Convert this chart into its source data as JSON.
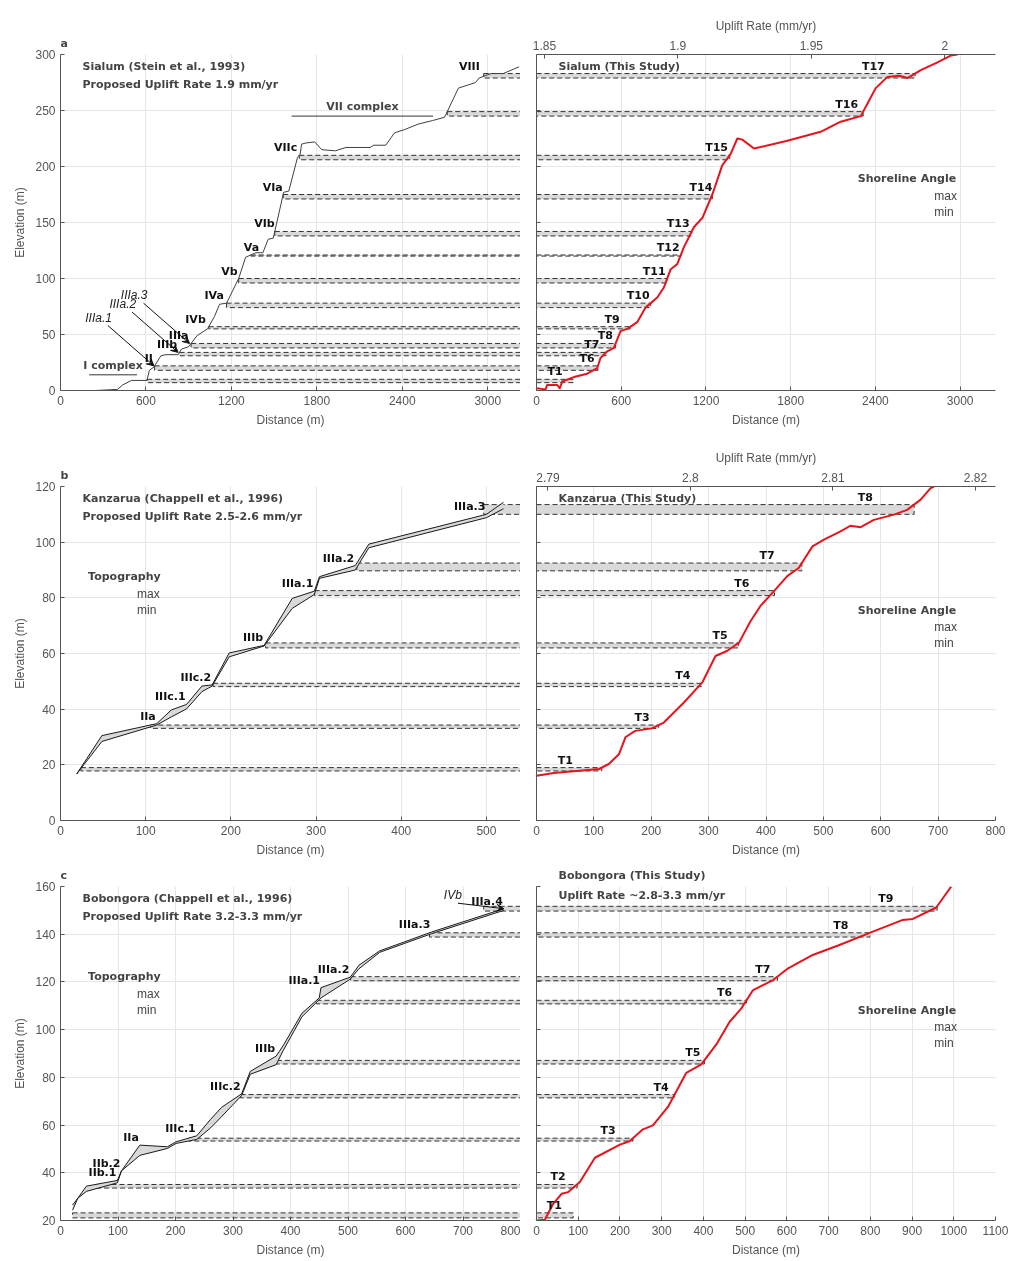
{
  "chart_data": [
    {
      "type": "line",
      "title": "Sialum (Stein et al., 1993)",
      "subtitle": "Proposed Uplift Rate 1.9 mm/yr",
      "xlabel": "Distance (m)",
      "ylabel": "Elevation (m)",
      "grid": true,
      "xlim": [
        0,
        3230
      ],
      "xticks": [
        0,
        600,
        1200,
        1800,
        2400,
        3000
      ],
      "ylim": [
        0,
        300
      ],
      "yticks": [
        0,
        50,
        100,
        150,
        200,
        250,
        300
      ],
      "x": [
        243,
        401,
        437,
        498,
        607,
        624,
        656,
        705,
        741,
        826,
        850,
        899,
        959,
        1032,
        1081,
        1117,
        1166,
        1251,
        1300,
        1372,
        1421,
        1458,
        1494,
        1567,
        1603,
        1664,
        1683,
        1693,
        1724,
        1785,
        1834,
        1931,
        2004,
        2174,
        2199,
        2284,
        2345,
        2417,
        2515,
        2612,
        2697,
        2794,
        2915,
        2939,
        3024,
        3109,
        3220
      ],
      "series": [
        {
          "color": "#404040",
          "values": [
            0,
            1,
            5,
            9,
            9,
            18,
            21,
            31,
            32,
            32,
            37,
            39,
            49,
            55,
            66,
            77,
            78,
            100,
            119,
            123,
            123,
            135,
            136,
            177,
            178,
            208,
            211,
            220,
            221,
            222,
            215,
            214,
            217,
            217,
            219,
            219,
            230,
            233,
            238,
            241,
            244,
            270,
            275,
            279,
            283,
            283,
            289
          ]
        },
        {
          "name": "VII complex",
          "color": "#333333",
          "x": [
            1623,
            2616
          ],
          "values": [
            245,
            245
          ]
        },
        {
          "name": "I complex",
          "color": "#333333",
          "x": [
            201,
            537
          ],
          "values": [
            14,
            14
          ]
        }
      ],
      "bands": [
        {
          "axis": "y",
          "from": 7,
          "to": 10,
          "color": "#d9d9d9"
        },
        {
          "axis": "y",
          "from": 18,
          "to": 22,
          "color": "#d9d9d9"
        },
        {
          "axis": "y",
          "from": 31,
          "to": 34,
          "color": "#d9d9d9"
        },
        {
          "axis": "y",
          "from": 38,
          "to": 42,
          "color": "#d9d9d9"
        },
        {
          "axis": "y",
          "from": 55,
          "to": 57,
          "color": "#d9d9d9"
        },
        {
          "axis": "y",
          "from": 74,
          "to": 78,
          "color": "#d9d9d9"
        },
        {
          "axis": "y",
          "from": 96,
          "to": 100,
          "color": "#d9d9d9"
        },
        {
          "axis": "y",
          "from": 120,
          "to": 121,
          "color": "#d9d9d9"
        },
        {
          "axis": "y",
          "from": 138,
          "to": 142,
          "color": "#d9d9d9"
        },
        {
          "axis": "y",
          "from": 171,
          "to": 175,
          "color": "#d9d9d9"
        },
        {
          "axis": "y",
          "from": 206,
          "to": 210,
          "color": "#d9d9d9"
        },
        {
          "axis": "y",
          "from": 245,
          "to": 249,
          "color": "#d9d9d9"
        },
        {
          "axis": "y",
          "from": 279,
          "to": 283,
          "color": "#d9d9d9"
        }
      ],
      "annotations": [
        "a",
        {
          "text": "VIII",
          "x": 2951,
          "y": 283
        },
        {
          "text": "VIIc",
          "x": 1669,
          "y": 210
        },
        {
          "text": "VIa",
          "x": 1567,
          "y": 175
        },
        {
          "text": "VIb",
          "x": 1511,
          "y": 142
        },
        {
          "text": "Va",
          "x": 1402,
          "y": 121
        },
        {
          "text": "Vb",
          "x": 1251,
          "y": 100
        },
        {
          "text": "IVa",
          "x": 1154,
          "y": 78
        },
        {
          "text": "IVb",
          "x": 1027,
          "y": 57
        },
        {
          "text": "IIIa",
          "x": 906,
          "y": 42
        },
        {
          "text": "IIIb",
          "x": 826,
          "y": 34
        },
        {
          "text": "II",
          "x": 656,
          "y": 22
        },
        {
          "text": "IIIa.1",
          "x": 656,
          "y": 22
        },
        {
          "text": "IIIa.2",
          "x": 826,
          "y": 34
        },
        {
          "text": "IIIa.3",
          "x": 906,
          "y": 42
        }
      ]
    },
    {
      "type": "line",
      "title": "Sialum (This Study)",
      "xlabel": "Distance (m)",
      "grid": true,
      "tick_labels": "x",
      "xlim": [
        0,
        3250
      ],
      "xticks": [
        0,
        600,
        1200,
        1800,
        2400,
        3000
      ],
      "ylim": [
        0,
        300
      ],
      "yticks": [
        0,
        50,
        100,
        150,
        200,
        250,
        300
      ],
      "x2label": "Uplift Rate (mm/yr)",
      "x2lim": [
        1.847,
        2.019
      ],
      "x2ticks": [
        1.85,
        1.9,
        1.95,
        2
      ],
      "x": [
        0,
        64,
        76,
        146,
        165,
        182,
        265,
        359,
        430,
        453,
        501,
        548,
        595,
        643,
        713,
        772,
        855,
        902,
        949,
        997,
        1044,
        1115,
        1174,
        1245,
        1315,
        1374,
        1422,
        1457,
        1540,
        1776,
        2012,
        2154,
        2296,
        2355,
        2402,
        2485,
        2568,
        2627,
        2721,
        2839,
        2933,
        2981
      ],
      "series": [
        {
          "color": "#e8141b",
          "values": [
            2,
            1,
            5,
            5,
            2,
            8,
            12,
            15,
            20,
            29,
            35,
            38,
            53,
            55,
            61,
            74,
            83,
            92,
            108,
            113,
            128,
            146,
            154,
            175,
            201,
            211,
            225,
            224,
            216,
            223,
            231,
            240,
            245,
            259,
            270,
            280,
            281,
            279,
            286,
            293,
            299,
            300
          ]
        }
      ],
      "bands": [
        {
          "axis": "y",
          "from": 7,
          "to": 10,
          "color": "#d9d9d9"
        },
        {
          "axis": "y",
          "from": 18,
          "to": 22,
          "color": "#d9d9d9"
        },
        {
          "axis": "y",
          "from": 31,
          "to": 34,
          "color": "#d9d9d9"
        },
        {
          "axis": "y",
          "from": 38,
          "to": 42,
          "color": "#d9d9d9"
        },
        {
          "axis": "y",
          "from": 55,
          "to": 57,
          "color": "#d9d9d9"
        },
        {
          "axis": "y",
          "from": 74,
          "to": 78,
          "color": "#d9d9d9"
        },
        {
          "axis": "y",
          "from": 96,
          "to": 100,
          "color": "#d9d9d9"
        },
        {
          "axis": "y",
          "from": 120,
          "to": 121,
          "color": "#d9d9d9"
        },
        {
          "axis": "y",
          "from": 138,
          "to": 142,
          "color": "#d9d9d9"
        },
        {
          "axis": "y",
          "from": 171,
          "to": 175,
          "color": "#d9d9d9"
        },
        {
          "axis": "y",
          "from": 206,
          "to": 210,
          "color": "#d9d9d9"
        },
        {
          "axis": "y",
          "from": 245,
          "to": 249,
          "color": "#d9d9d9"
        },
        {
          "axis": "y",
          "from": 279,
          "to": 283,
          "color": "#d9d9d9"
        }
      ],
      "annotations": [
        "Shoreline Angle",
        "max",
        "min",
        {
          "text": "T1",
          "x": 64,
          "y": 10
        },
        {
          "text": "T6",
          "x": 418,
          "y": 22
        },
        {
          "text": "T7",
          "x": 453,
          "y": 34
        },
        {
          "text": "T8",
          "x": 548,
          "y": 42
        },
        {
          "text": "T9",
          "x": 595,
          "y": 57
        },
        {
          "text": "T10",
          "x": 808,
          "y": 78
        },
        {
          "text": "T11",
          "x": 921,
          "y": 100
        },
        {
          "text": "T12",
          "x": 1020,
          "y": 121
        },
        {
          "text": "T13",
          "x": 1091,
          "y": 142
        },
        {
          "text": "T14",
          "x": 1252,
          "y": 175
        },
        {
          "text": "T15",
          "x": 1363,
          "y": 210
        },
        {
          "text": "T16",
          "x": 2284,
          "y": 249
        },
        {
          "text": "T17",
          "x": 2473,
          "y": 283
        }
      ]
    },
    {
      "type": "line",
      "title": "Kanzarua (Chappell et al., 1996)",
      "subtitle": "Proposed Uplift Rate 2.5-2.6 mm/yr",
      "xlabel": "Distance (m)",
      "ylabel": "Elevation (m)",
      "grid": true,
      "xlim": [
        0,
        540
      ],
      "xticks": [
        0,
        100,
        200,
        300,
        400,
        500
      ],
      "ylim": [
        0,
        120
      ],
      "yticks": [
        0,
        20,
        40,
        60,
        80,
        100,
        120
      ],
      "x": [
        19,
        48.6,
        113,
        130,
        148,
        166,
        178,
        198,
        239,
        272,
        298,
        304,
        346,
        362,
        500,
        520
      ],
      "series": [
        {
          "color": "#1a1a1a",
          "values": [
            16.7,
            30.5,
            34.8,
            39.7,
            41.7,
            48.3,
            48.7,
            60.2,
            62.9,
            79.8,
            82.4,
            87.6,
            91.6,
            99.3,
            110,
            114.3
          ],
          "upper": [
            16.7,
            30.5,
            34.8,
            39.7,
            41.7,
            48.3,
            48.7,
            60.2,
            62.9,
            79.8,
            82.4,
            87.6,
            91.6,
            99.3,
            110,
            114.3
          ],
          "lower": [
            16.7,
            28.4,
            34.3,
            37.2,
            40.1,
            46.3,
            48.3,
            58.8,
            62.7,
            76.2,
            81.2,
            87,
            90,
            98,
            108.8,
            112
          ]
        },
        {
          "color": "#1a1a1a",
          "values": [
            16.7,
            28.4,
            34.3,
            37.2,
            40.1,
            46.3,
            48.3,
            58.8,
            62.7,
            76.2,
            81.2,
            87,
            90,
            98,
            108.8,
            112
          ]
        }
      ],
      "bands": [
        {
          "axis": "y",
          "from": 17.8,
          "to": 19,
          "color": "#d9d9d9"
        },
        {
          "axis": "y",
          "from": 33.1,
          "to": 34.3,
          "color": "#d9d9d9"
        },
        {
          "axis": "y",
          "from": 48.1,
          "to": 49.3,
          "color": "#d9d9d9"
        },
        {
          "axis": "y",
          "from": 62,
          "to": 63.8,
          "color": "#d9d9d9"
        },
        {
          "axis": "y",
          "from": 80.8,
          "to": 82.6,
          "color": "#d9d9d9"
        },
        {
          "axis": "y",
          "from": 89.7,
          "to": 92.5,
          "color": "#d9d9d9"
        },
        {
          "axis": "y",
          "from": 110,
          "to": 113.5,
          "color": "#d9d9d9"
        }
      ],
      "annotations": [
        "b",
        "Topography",
        "max",
        "min",
        {
          "text": "IIa",
          "x": 113,
          "y": 34.8
        },
        {
          "text": "IIIc.1",
          "x": 148,
          "y": 41.7
        },
        {
          "text": "IIIc.2",
          "x": 178,
          "y": 48.7
        },
        {
          "text": "IIIb",
          "x": 239,
          "y": 62.9
        },
        {
          "text": "IIIa.1",
          "x": 298,
          "y": 82.4
        },
        {
          "text": "IIIa.2",
          "x": 346,
          "y": 91.6
        },
        {
          "text": "IIIa.3",
          "x": 500,
          "y": 110
        }
      ]
    },
    {
      "type": "line",
      "title": "Kanzarua (This Study)",
      "xlabel": "Distance (m)",
      "grid": true,
      "tick_labels": "x",
      "xlim": [
        0,
        800
      ],
      "xticks": [
        0,
        100,
        200,
        300,
        400,
        500,
        600,
        700,
        800
      ],
      "ylim": [
        0,
        120
      ],
      "yticks": [
        0,
        20,
        40,
        60,
        80,
        100,
        120
      ],
      "x2label": "Uplift Rate (mm/yr)",
      "x2lim": [
        2.7892,
        2.8214
      ],
      "x2ticks": [
        2.79,
        2.8,
        2.81,
        2.82
      ],
      "x": [
        0,
        30,
        65,
        109,
        126,
        144,
        155,
        172,
        201,
        222,
        257,
        289,
        312,
        332,
        353,
        373,
        390,
        414,
        437,
        457,
        481,
        501,
        530,
        547,
        565,
        588,
        623,
        646,
        669,
        687,
        693
      ],
      "series": [
        {
          "color": "#e8141b",
          "values": [
            16.1,
            17.1,
            17.7,
            18.5,
            20.3,
            23.9,
            29.9,
            32.2,
            33.1,
            35.2,
            42.4,
            49.6,
            59.1,
            60.9,
            63.9,
            71.6,
            77,
            82.4,
            87.8,
            90.7,
            98.5,
            100.9,
            103.9,
            105.9,
            105.4,
            108,
            109.9,
            111.6,
            115.2,
            119.4,
            120
          ]
        }
      ],
      "bands": [
        {
          "axis": "y",
          "from": 17.8,
          "to": 19,
          "color": "#d9d9d9"
        },
        {
          "axis": "y",
          "from": 33.1,
          "to": 34.3,
          "color": "#d9d9d9"
        },
        {
          "axis": "y",
          "from": 48.1,
          "to": 49.3,
          "color": "#d9d9d9"
        },
        {
          "axis": "y",
          "from": 62,
          "to": 63.8,
          "color": "#d9d9d9"
        },
        {
          "axis": "y",
          "from": 80.8,
          "to": 82.6,
          "color": "#d9d9d9"
        },
        {
          "axis": "y",
          "from": 89.7,
          "to": 92.5,
          "color": "#d9d9d9"
        },
        {
          "axis": "y",
          "from": 110,
          "to": 113.5,
          "color": "#d9d9d9"
        }
      ],
      "annotations": [
        "Shoreline Angle",
        "max",
        "min",
        {
          "text": "T1",
          "x": 65,
          "y": 19
        },
        {
          "text": "T3",
          "x": 199,
          "y": 34.3
        },
        {
          "text": "T4",
          "x": 270,
          "y": 49.3
        },
        {
          "text": "T5",
          "x": 335,
          "y": 63.8
        },
        {
          "text": "T6",
          "x": 373,
          "y": 82.6
        },
        {
          "text": "T7",
          "x": 417,
          "y": 92.5
        },
        {
          "text": "T8",
          "x": 588,
          "y": 113.5
        }
      ]
    },
    {
      "type": "line",
      "title": "Bobongora (Chappell et al., 1996)",
      "subtitle": "Proposed Uplift Rate 3.2-3.3 mm/yr",
      "xlabel": "Distance (m)",
      "ylabel": "Elevation (m)",
      "grid": true,
      "xlim": [
        0,
        800
      ],
      "xticks": [
        0,
        100,
        200,
        300,
        400,
        500,
        600,
        700,
        800
      ],
      "ylim": [
        20,
        160
      ],
      "yticks": [
        20,
        40,
        60,
        80,
        100,
        120,
        140,
        160
      ],
      "x": [
        21,
        30,
        45,
        99,
        106,
        138,
        186,
        201,
        237,
        261,
        280,
        315,
        330,
        375,
        387,
        420,
        450,
        453,
        504,
        519,
        555,
        645,
        771
      ],
      "series": [
        {
          "color": "#1a1a1a",
          "values": [
            26.5,
            29.3,
            34.4,
            36.8,
            40.8,
            51.6,
            50.9,
            53,
            55.5,
            62.4,
            67.4,
            73.1,
            82.5,
            88.9,
            93.2,
            106.9,
            113.3,
            117.6,
            122,
            127,
            133,
            140.9,
            150.7
          ],
          "upper": [
            26.5,
            29.3,
            34.4,
            36.8,
            40.8,
            51.6,
            50.9,
            53,
            55.5,
            62.4,
            67.4,
            73.1,
            82.5,
            88.9,
            93.2,
            106.9,
            113.3,
            117.6,
            122,
            127,
            133,
            140.9,
            150.7
          ],
          "lower": [
            24.3,
            29.3,
            32.2,
            35.8,
            40.8,
            47.3,
            50.2,
            52.3,
            54,
            58.8,
            63.5,
            72.4,
            81.3,
            85.3,
            91.1,
            105.4,
            112.6,
            113.3,
            121.2,
            125.5,
            132.4,
            140.2,
            150
          ]
        },
        {
          "color": "#1a1a1a",
          "values": [
            24.3,
            29.3,
            32.2,
            35.8,
            40.8,
            47.3,
            50.2,
            52.3,
            54,
            58.8,
            63.5,
            72.4,
            81.3,
            85.3,
            91.1,
            105.4,
            112.6,
            113.3,
            121.2,
            125.5,
            132.4,
            140.2,
            150
          ]
        }
      ],
      "bands": [
        {
          "axis": "y",
          "from": 21.1,
          "to": 23.2,
          "color": "#d9d9d9"
        },
        {
          "axis": "y",
          "from": 33.6,
          "to": 35.1,
          "color": "#d9d9d9"
        },
        {
          "axis": "y",
          "from": 53.3,
          "to": 54.5,
          "color": "#d9d9d9"
        },
        {
          "axis": "y",
          "from": 71.4,
          "to": 72.8,
          "color": "#d9d9d9"
        },
        {
          "axis": "y",
          "from": 85.6,
          "to": 87.1,
          "color": "#d9d9d9"
        },
        {
          "axis": "y",
          "from": 110.8,
          "to": 112.3,
          "color": "#d9d9d9"
        },
        {
          "axis": "y",
          "from": 120.5,
          "to": 122.2,
          "color": "#d9d9d9"
        },
        {
          "axis": "y",
          "from": 138.8,
          "to": 140.6,
          "color": "#d9d9d9"
        },
        {
          "axis": "y",
          "from": 149.7,
          "to": 151.7,
          "color": "#d9d9d9"
        }
      ],
      "annotations": [
        "c",
        "Topography",
        "max",
        "min",
        {
          "text": "IIb.1",
          "x": 99,
          "y": 36.8
        },
        {
          "text": "IIb.2",
          "x": 106,
          "y": 40.8
        },
        {
          "text": "IIa",
          "x": 138,
          "y": 51.6
        },
        {
          "text": "IIIc.1",
          "x": 237,
          "y": 55.5
        },
        {
          "text": "IIIc.2",
          "x": 315,
          "y": 73.1
        },
        {
          "text": "IIIb",
          "x": 375,
          "y": 88.9
        },
        {
          "text": "IIIa.1",
          "x": 453,
          "y": 117.6
        },
        {
          "text": "IIIa.2",
          "x": 504,
          "y": 122
        },
        {
          "text": "IIIa.3",
          "x": 645,
          "y": 140.9
        },
        {
          "text": "IIIa.4",
          "x": 771,
          "y": 150.7
        },
        {
          "text": "IVb",
          "x": 771,
          "y": 150.7
        }
      ]
    },
    {
      "type": "line",
      "title": "Bobongora (This Study)",
      "subtitle": "Uplift Rate ~2.8-3.3 mm/yr",
      "xlabel": "Distance (m)",
      "grid": true,
      "tick_labels": "x",
      "xlim": [
        0,
        1100
      ],
      "xticks": [
        0,
        100,
        200,
        300,
        400,
        500,
        600,
        700,
        800,
        900,
        1000,
        1100
      ],
      "ylim": [
        20,
        160
      ],
      "yticks": [
        20,
        40,
        60,
        80,
        100,
        120,
        140,
        160
      ],
      "x": [
        0,
        20,
        40,
        60,
        76,
        104,
        140,
        200,
        223,
        255,
        279,
        315,
        359,
        395,
        431,
        463,
        491,
        519,
        567,
        603,
        662,
        726,
        806,
        878,
        902,
        958,
        994
      ],
      "series": [
        {
          "color": "#e8141b",
          "values": [
            20,
            20.3,
            27,
            31.2,
            31.9,
            36.1,
            46.3,
            51.8,
            53.2,
            58.2,
            59.9,
            67.6,
            81.9,
            85.4,
            93.8,
            103.3,
            108.9,
            116.6,
            120.8,
            125.7,
            131.3,
            135.5,
            141.1,
            146,
            146.4,
            151.2,
            160
          ]
        }
      ],
      "bands": [
        {
          "axis": "y",
          "from": 21.1,
          "to": 23.2,
          "color": "#d9d9d9"
        },
        {
          "axis": "y",
          "from": 33.6,
          "to": 35.1,
          "color": "#d9d9d9"
        },
        {
          "axis": "y",
          "from": 53.3,
          "to": 54.5,
          "color": "#d9d9d9"
        },
        {
          "axis": "y",
          "from": 71.4,
          "to": 72.8,
          "color": "#d9d9d9"
        },
        {
          "axis": "y",
          "from": 85.6,
          "to": 87.1,
          "color": "#d9d9d9"
        },
        {
          "axis": "y",
          "from": 110.8,
          "to": 112.3,
          "color": "#d9d9d9"
        },
        {
          "axis": "y",
          "from": 120.5,
          "to": 122.2,
          "color": "#d9d9d9"
        },
        {
          "axis": "y",
          "from": 138.8,
          "to": 140.6,
          "color": "#d9d9d9"
        },
        {
          "axis": "y",
          "from": 149.7,
          "to": 151.7,
          "color": "#d9d9d9"
        }
      ],
      "annotations": [
        "Shoreline Angle",
        "max",
        "min",
        {
          "text": "T1",
          "x": 20,
          "y": 23.2
        },
        {
          "text": "T2",
          "x": 72,
          "y": 35.1
        },
        {
          "text": "T3",
          "x": 192,
          "y": 54.5
        },
        {
          "text": "T4",
          "x": 319,
          "y": 72.8
        },
        {
          "text": "T5",
          "x": 395,
          "y": 87.1
        },
        {
          "text": "T6",
          "x": 471,
          "y": 112.3
        },
        {
          "text": "T7",
          "x": 563,
          "y": 122.2
        },
        {
          "text": "T8",
          "x": 750,
          "y": 140.6
        },
        {
          "text": "T9",
          "x": 858,
          "y": 151.7
        }
      ]
    }
  ]
}
